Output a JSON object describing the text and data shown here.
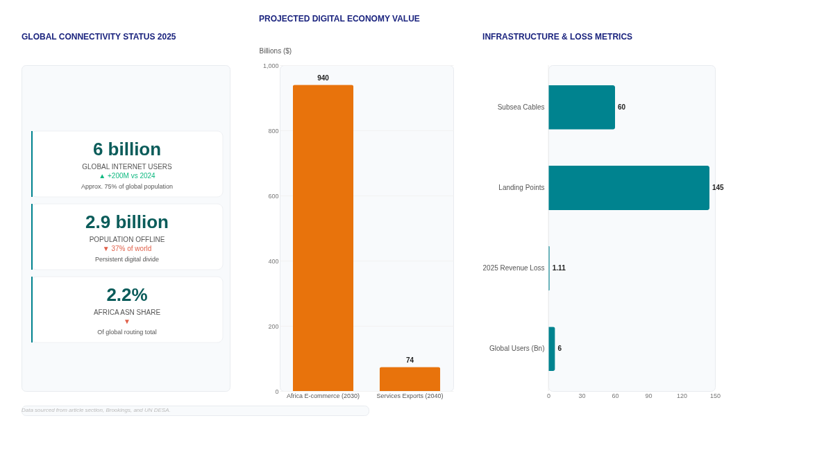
{
  "chart_data": [
    {
      "type": "other",
      "title": "GLOBAL CONNECTIVITY STATUS 2025",
      "annotations": [
        "6 billion",
        "GLOBAL INTERNET USERS",
        "▲ +200M vs 2024",
        "Approx. 75% of global population",
        "2.9 billion",
        "POPULATION OFFLINE",
        "▼ 37% of world",
        "Persistent digital divide",
        "2.2%",
        "AFRICA ASN SHARE",
        "▼",
        "Of global routing total"
      ],
      "colors": [
        "#10b981",
        "#e0604a",
        "#e0604a"
      ]
    },
    {
      "type": "bar",
      "title": "PROJECTED DIGITAL ECONOMY VALUE",
      "ylabel": "Billions ($)",
      "categories": [
        "Africa E-commerce (2030)",
        "Services Exports (2040)"
      ],
      "values": [
        940,
        74
      ],
      "color": "#e8730c",
      "ylim": [
        0,
        1000
      ],
      "yticks": [
        0,
        200,
        400,
        600,
        800,
        {
          "value": 1000,
          "label": "1,000"
        }
      ],
      "grid": "y",
      "data_labels": true,
      "annotations": [
        "Data sourced from article section, Brookings, and UN DESA."
      ]
    },
    {
      "type": "bar",
      "orientation": "horizontal",
      "title": "INFRASTRUCTURE & LOSS METRICS",
      "categories": [
        "Subsea Cables",
        "Landing Points",
        "2025 Revenue Loss",
        "Global Users (Bn)"
      ],
      "values": [
        60,
        145,
        1.11,
        6
      ],
      "color": "#00838f",
      "xlim": [
        0,
        150
      ],
      "xticks": [
        0,
        30,
        60,
        90,
        120,
        150
      ],
      "data_labels": true
    }
  ]
}
